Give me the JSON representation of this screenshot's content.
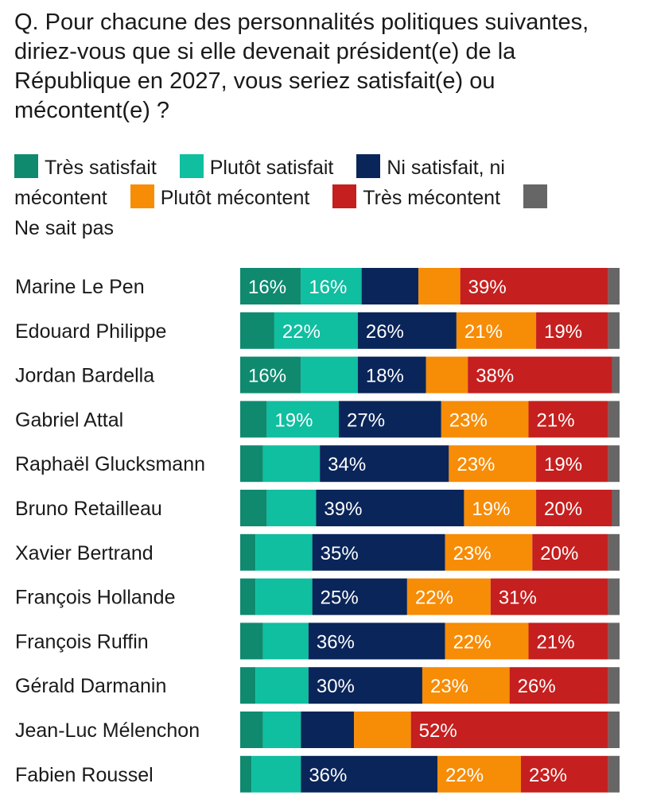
{
  "question": "Q. Pour chacune des personnalités politiques suivantes, diriez-vous que si elle devenait président(e) de la République en 2027, vous seriez satisfait(e) ou mécontent(e) ?",
  "chart_data": {
    "type": "bar",
    "orientation": "horizontal-stacked-100",
    "title": "Q. Pour chacune des personnalités politiques suivantes, diriez-vous que si elle devenait président(e) de la République en 2027, vous seriez satisfait(e) ou mécontent(e) ?",
    "categories": [
      "Marine Le Pen",
      "Edouard Philippe",
      "Jordan Bardella",
      "Gabriel Attal",
      "Raphaël Glucksmann",
      "Bruno Retailleau",
      "Xavier Bertrand",
      "François Hollande",
      "François Ruffin",
      "Gérald Darmanin",
      "Jean-Luc Mélenchon",
      "Fabien Roussel"
    ],
    "series": [
      {
        "name": "Très satisfait",
        "color": "#0f8a6f",
        "values": [
          16,
          9,
          16,
          7,
          6,
          7,
          4,
          4,
          6,
          4,
          6,
          3
        ]
      },
      {
        "name": "Plutôt satisfait",
        "color": "#10bea0",
        "values": [
          16,
          22,
          15,
          19,
          15,
          13,
          15,
          15,
          12,
          14,
          10,
          13
        ]
      },
      {
        "name": "Ni satisfait, ni mécontent",
        "color": "#0a2559",
        "values": [
          15,
          26,
          18,
          27,
          34,
          39,
          35,
          25,
          36,
          30,
          14,
          36
        ]
      },
      {
        "name": "Plutôt mécontent",
        "color": "#f78c06",
        "values": [
          11,
          21,
          11,
          23,
          23,
          19,
          23,
          22,
          22,
          23,
          15,
          22
        ]
      },
      {
        "name": "Très mécontent",
        "color": "#c51f1f",
        "values": [
          39,
          19,
          38,
          21,
          19,
          20,
          20,
          31,
          21,
          26,
          52,
          23
        ]
      },
      {
        "name": "Ne sait pas",
        "color": "#666666",
        "values": [
          3,
          3,
          2,
          3,
          3,
          2,
          3,
          3,
          3,
          3,
          3,
          3
        ]
      }
    ],
    "labels_shown": [
      [
        16,
        16,
        null,
        null,
        39,
        null
      ],
      [
        null,
        22,
        26,
        21,
        19,
        null
      ],
      [
        16,
        null,
        18,
        null,
        38,
        null
      ],
      [
        null,
        19,
        27,
        23,
        21,
        null
      ],
      [
        null,
        null,
        34,
        23,
        19,
        null
      ],
      [
        null,
        null,
        39,
        19,
        20,
        null
      ],
      [
        null,
        null,
        35,
        23,
        20,
        null
      ],
      [
        null,
        null,
        25,
        22,
        31,
        null
      ],
      [
        null,
        null,
        36,
        22,
        21,
        null
      ],
      [
        null,
        null,
        30,
        23,
        26,
        null
      ],
      [
        null,
        null,
        null,
        null,
        52,
        null
      ],
      [
        null,
        null,
        36,
        22,
        23,
        null
      ]
    ],
    "label_suffix": "%",
    "legend": "top",
    "xlim": [
      0,
      100
    ]
  }
}
